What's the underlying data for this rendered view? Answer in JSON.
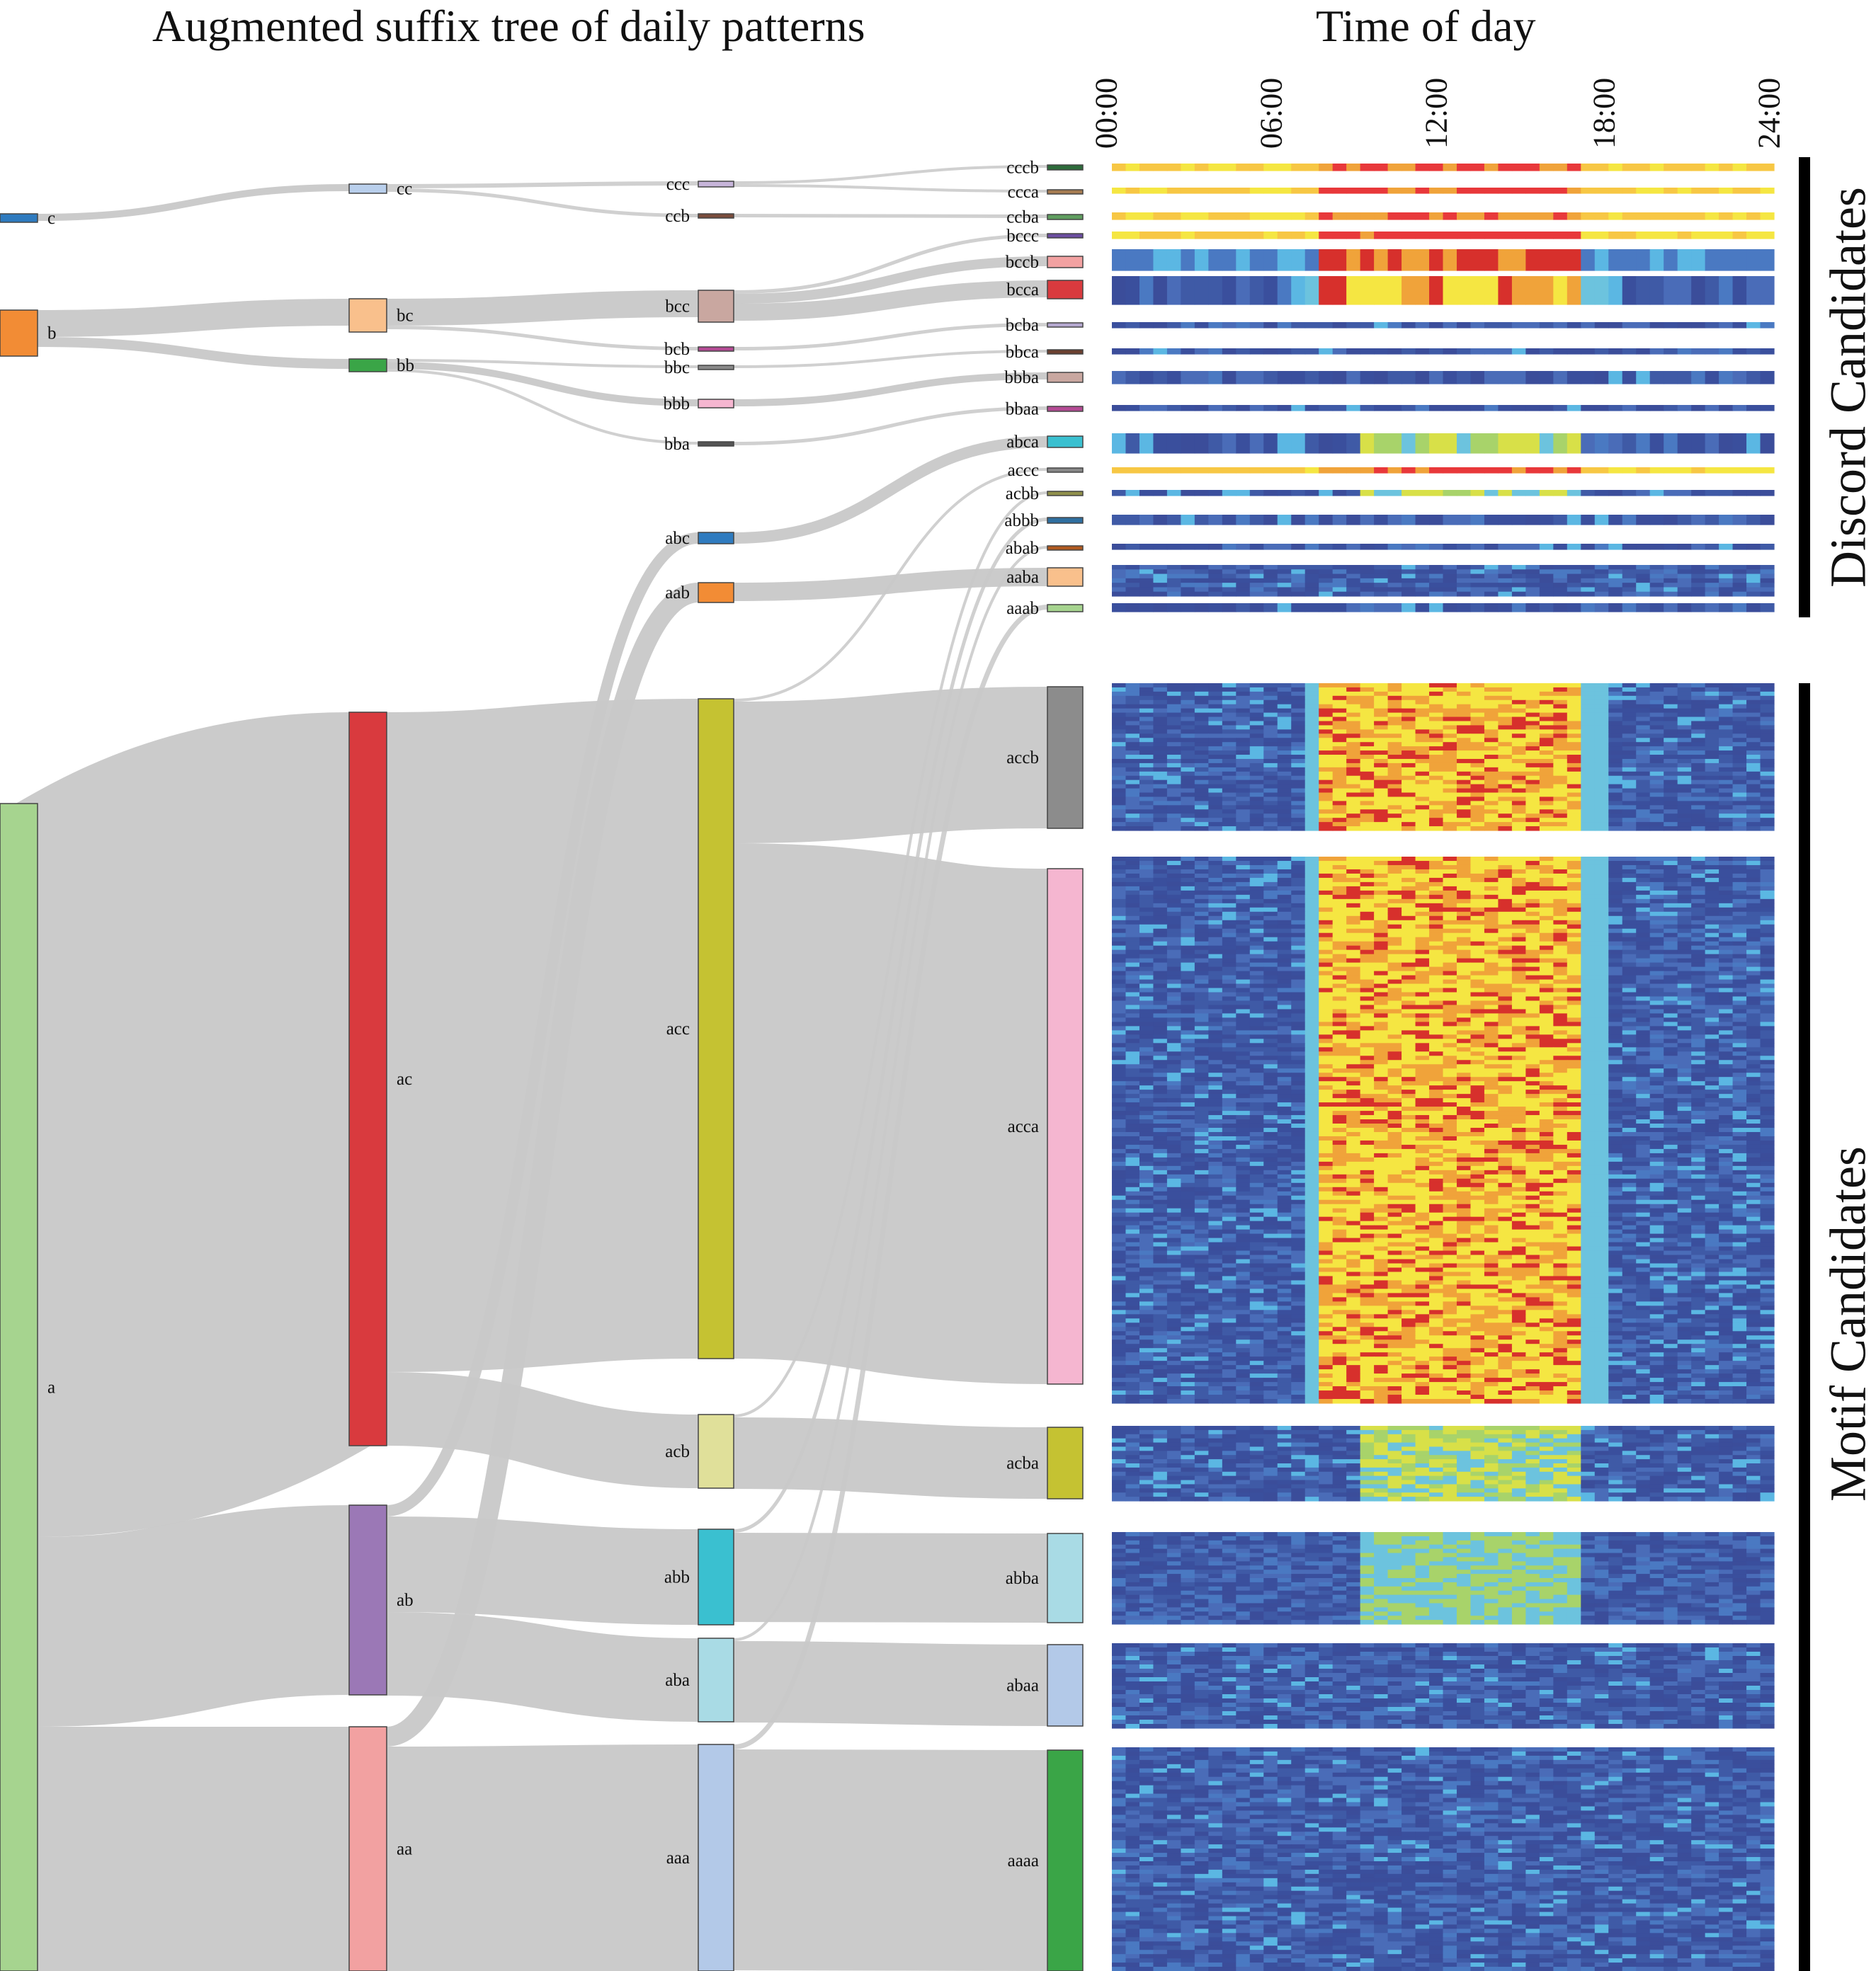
{
  "titles": {
    "tree": "Augmented suffix tree of daily patterns",
    "time": "Time of day"
  },
  "time_ticks": [
    "00:00",
    "06:00",
    "12:00",
    "18:00",
    "24:00"
  ],
  "groups": {
    "discord": "Discord Candidates",
    "motif": "Motif Candidates"
  },
  "colors": {
    "link": "#c8c8c8",
    "heat_low": "#3b4d9a",
    "heat_mid": "#f5e642",
    "heat_high": "#d7302c"
  },
  "nodes": {
    "c": "c",
    "b": "b",
    "a": "a",
    "cc": "cc",
    "bc": "bc",
    "bb": "bb",
    "ac": "ac",
    "ab": "ab",
    "aa": "aa",
    "ccc": "ccc",
    "ccb": "ccb",
    "bcc": "bcc",
    "bcb": "bcb",
    "bbc": "bbc",
    "bbb": "bbb",
    "bba": "bba",
    "abc": "abc",
    "aab": "aab",
    "acc": "acc",
    "acb": "acb",
    "abb": "abb",
    "aba": "aba",
    "aaa": "aaa",
    "cccb": "cccb",
    "ccca": "ccca",
    "ccba": "ccba",
    "bccc": "bccc",
    "bccb": "bccb",
    "bcca": "bcca",
    "bcba": "bcba",
    "bbca": "bbca",
    "bbba": "bbba",
    "bbaa": "bbaa",
    "abca": "abca",
    "accc": "accc",
    "acbb": "acbb",
    "abbb": "abbb",
    "abab": "abab",
    "aaba": "aaba",
    "aaab": "aaab",
    "accb": "accb",
    "acca": "acca",
    "acba": "acba",
    "abba": "abba",
    "abaa": "abaa",
    "aaaa": "aaaa"
  }
}
